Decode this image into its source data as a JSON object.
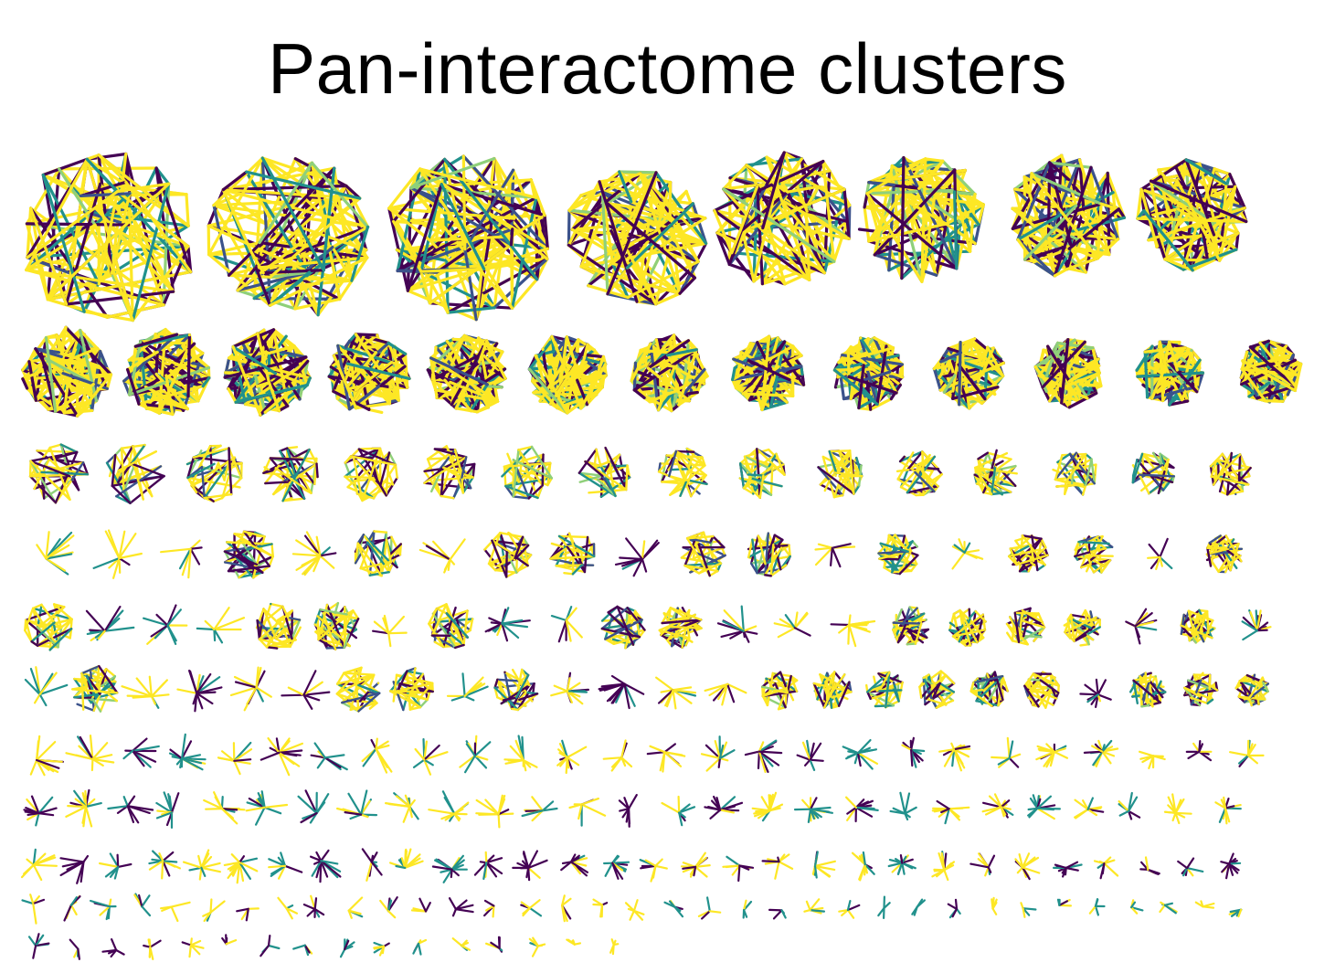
{
  "figure": {
    "title": "Pan-interactome clusters"
  },
  "palette": {
    "colors": [
      "#fde725",
      "#f0e442",
      "#8fd07a",
      "#5ec962",
      "#35b779",
      "#21918c",
      "#3b528b",
      "#440154",
      "#2d0a4e"
    ],
    "background": "#ffffff"
  },
  "cluster_rows": [
    {
      "row": 1,
      "count": 8,
      "style": "dense-disc"
    },
    {
      "row": 2,
      "count": 13,
      "style": "dense-disc"
    },
    {
      "row": 3,
      "count": 16,
      "style": "dense"
    },
    {
      "row": 4,
      "count": 19,
      "style": "mixed"
    },
    {
      "row": 5,
      "count": 22,
      "style": "mixed"
    },
    {
      "row": 6,
      "count": 24,
      "style": "mixed"
    },
    {
      "row": 7,
      "count": 26,
      "style": "star"
    },
    {
      "row": 8,
      "count": 27,
      "style": "star"
    },
    {
      "row": 9,
      "count": 30,
      "style": "star"
    },
    {
      "row": 10,
      "count": 35,
      "style": "sparse"
    },
    {
      "row": 11,
      "count": 16,
      "style": "sparse"
    }
  ]
}
